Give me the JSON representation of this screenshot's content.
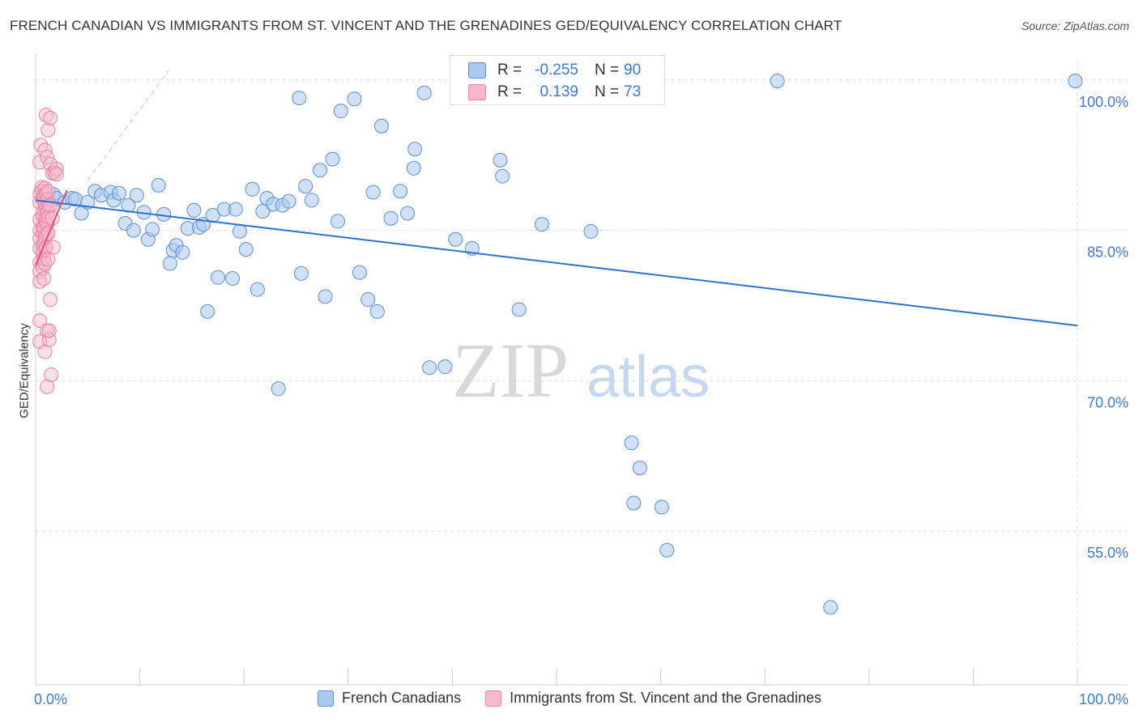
{
  "title": "FRENCH CANADIAN VS IMMIGRANTS FROM ST. VINCENT AND THE GRENADINES GED/EQUIVALENCY CORRELATION CHART",
  "source": "Source: ZipAtlas.com",
  "watermark": {
    "zip": "ZIP",
    "atlas": "atlas"
  },
  "stats_box": {
    "r_label": "R =",
    "n_label": "N =",
    "rows": [
      {
        "r": "-0.255",
        "n": "90"
      },
      {
        "r": "0.139",
        "n": "73"
      }
    ]
  },
  "colors": {
    "blue_fill": "#aac8f0",
    "blue_stroke": "#5b8fd6",
    "blue_line": "#2d6fd2",
    "pink_fill": "#f7b8cb",
    "pink_stroke": "#ee80a0",
    "pink_line": "#e0507a",
    "tick_text": "#3b78d8",
    "grid": "#e0e0e0"
  },
  "chart_data": {
    "type": "scatter",
    "xlabel": "",
    "ylabel": "GED/Equivalency",
    "xlim": [
      0,
      100
    ],
    "ylim": [
      40,
      102
    ],
    "x_tick_labels": [
      {
        "value": 0,
        "label": "0.0%"
      },
      {
        "value": 100,
        "label": "100.0%"
      }
    ],
    "y_tick_labels": [
      {
        "value": 55,
        "label": "55.0%"
      },
      {
        "value": 70,
        "label": "70.0%"
      },
      {
        "value": 85,
        "label": "85.0%"
      },
      {
        "value": 100,
        "label": "100.0%"
      }
    ],
    "grid": true,
    "legend_position": "bottom",
    "series": [
      {
        "name": "French Canadians",
        "color": "#aac8f0",
        "trend": {
          "x": [
            0,
            100
          ],
          "y": [
            88.0,
            75.5
          ]
        },
        "points": [
          [
            1.7,
            88.6
          ],
          [
            2.0,
            88.2
          ],
          [
            2.8,
            87.8
          ],
          [
            3.5,
            88.2
          ],
          [
            4.4,
            86.7
          ],
          [
            3.8,
            88.1
          ],
          [
            5.0,
            87.8
          ],
          [
            5.7,
            88.9
          ],
          [
            6.3,
            88.5
          ],
          [
            7.2,
            88.8
          ],
          [
            7.5,
            88.0
          ],
          [
            8.0,
            88.7
          ],
          [
            8.6,
            85.7
          ],
          [
            8.9,
            87.5
          ],
          [
            9.4,
            85.0
          ],
          [
            9.7,
            88.5
          ],
          [
            10.4,
            86.8
          ],
          [
            10.8,
            84.1
          ],
          [
            11.2,
            85.1
          ],
          [
            11.8,
            89.5
          ],
          [
            12.3,
            86.6
          ],
          [
            12.9,
            81.7
          ],
          [
            13.2,
            83.0
          ],
          [
            13.5,
            83.5
          ],
          [
            14.1,
            82.8
          ],
          [
            14.6,
            85.2
          ],
          [
            15.2,
            87.0
          ],
          [
            15.7,
            85.3
          ],
          [
            16.1,
            85.6
          ],
          [
            16.5,
            76.9
          ],
          [
            17.0,
            86.5
          ],
          [
            17.5,
            80.3
          ],
          [
            18.1,
            87.1
          ],
          [
            18.9,
            80.2
          ],
          [
            19.2,
            87.1
          ],
          [
            19.6,
            84.9
          ],
          [
            20.2,
            83.1
          ],
          [
            20.8,
            89.1
          ],
          [
            21.3,
            79.1
          ],
          [
            21.8,
            86.9
          ],
          [
            22.2,
            88.2
          ],
          [
            22.8,
            87.6
          ],
          [
            23.3,
            69.2
          ],
          [
            23.7,
            87.5
          ],
          [
            24.3,
            87.9
          ],
          [
            25.3,
            98.2
          ],
          [
            25.5,
            80.7
          ],
          [
            25.9,
            89.4
          ],
          [
            26.5,
            88.0
          ],
          [
            27.3,
            91.0
          ],
          [
            27.8,
            78.4
          ],
          [
            28.5,
            92.1
          ],
          [
            29.0,
            85.9
          ],
          [
            29.3,
            96.9
          ],
          [
            30.6,
            98.1
          ],
          [
            31.1,
            80.8
          ],
          [
            31.9,
            78.1
          ],
          [
            32.4,
            88.8
          ],
          [
            32.8,
            76.9
          ],
          [
            33.2,
            95.4
          ],
          [
            34.1,
            86.2
          ],
          [
            35.0,
            88.9
          ],
          [
            35.7,
            86.7
          ],
          [
            36.3,
            91.2
          ],
          [
            36.4,
            93.1
          ],
          [
            37.3,
            98.7
          ],
          [
            37.8,
            71.3
          ],
          [
            39.3,
            71.4
          ],
          [
            40.3,
            84.1
          ],
          [
            41.9,
            83.2
          ],
          [
            44.6,
            92.0
          ],
          [
            44.8,
            90.4
          ],
          [
            46.4,
            77.1
          ],
          [
            47.3,
            99.9
          ],
          [
            48.6,
            85.6
          ],
          [
            48.9,
            100.0
          ],
          [
            53.3,
            84.9
          ],
          [
            57.2,
            63.8
          ],
          [
            57.4,
            57.8
          ],
          [
            58.0,
            61.3
          ],
          [
            60.1,
            57.4
          ],
          [
            60.6,
            53.1
          ],
          [
            71.2,
            99.9
          ],
          [
            76.3,
            47.4
          ],
          [
            99.8,
            99.9
          ]
        ]
      },
      {
        "name": "Immigrants from St. Vincent and the Grenadines",
        "color": "#f7b8cb",
        "trend": {
          "x": [
            0,
            3.0
          ],
          "y": [
            81.5,
            89.0
          ]
        },
        "points": [
          [
            0.4,
            91.8
          ],
          [
            0.4,
            88.6
          ],
          [
            0.4,
            87.8
          ],
          [
            0.4,
            86.1
          ],
          [
            0.4,
            85.0
          ],
          [
            0.4,
            84.2
          ],
          [
            0.4,
            83.2
          ],
          [
            0.4,
            81.8
          ],
          [
            0.4,
            80.9
          ],
          [
            0.4,
            79.9
          ],
          [
            0.4,
            76.0
          ],
          [
            0.4,
            73.9
          ],
          [
            0.5,
            93.5
          ],
          [
            0.6,
            89.3
          ],
          [
            0.6,
            88.9
          ],
          [
            0.7,
            88.1
          ],
          [
            0.7,
            86.5
          ],
          [
            0.7,
            85.4
          ],
          [
            0.7,
            84.8
          ],
          [
            0.7,
            83.5
          ],
          [
            0.7,
            82.8
          ],
          [
            0.7,
            81.3
          ],
          [
            0.8,
            88.4
          ],
          [
            0.8,
            87.0
          ],
          [
            0.8,
            85.2
          ],
          [
            0.8,
            84.0
          ],
          [
            0.8,
            82.2
          ],
          [
            0.8,
            80.2
          ],
          [
            0.9,
            93.0
          ],
          [
            0.9,
            89.2
          ],
          [
            0.9,
            87.6
          ],
          [
            0.9,
            86.1
          ],
          [
            0.9,
            84.3
          ],
          [
            0.9,
            83.1
          ],
          [
            0.9,
            81.7
          ],
          [
            0.9,
            72.9
          ],
          [
            1.0,
            96.5
          ],
          [
            1.0,
            88.7
          ],
          [
            1.0,
            87.3
          ],
          [
            1.0,
            85.9
          ],
          [
            1.0,
            84.6
          ],
          [
            1.0,
            83.3
          ],
          [
            1.1,
            92.3
          ],
          [
            1.1,
            88.1
          ],
          [
            1.1,
            86.8
          ],
          [
            1.1,
            85.6
          ],
          [
            1.1,
            75.0
          ],
          [
            1.1,
            69.4
          ],
          [
            1.2,
            95.0
          ],
          [
            1.2,
            88.9
          ],
          [
            1.2,
            87.4
          ],
          [
            1.2,
            86.3
          ],
          [
            1.2,
            84.7
          ],
          [
            1.2,
            82.1
          ],
          [
            1.3,
            74.1
          ],
          [
            1.3,
            75.0
          ],
          [
            1.4,
            96.2
          ],
          [
            1.4,
            91.6
          ],
          [
            1.4,
            87.5
          ],
          [
            1.4,
            78.1
          ],
          [
            1.5,
            70.6
          ],
          [
            1.6,
            90.7
          ],
          [
            1.6,
            86.2
          ],
          [
            1.7,
            83.3
          ],
          [
            1.8,
            90.8
          ],
          [
            2.0,
            91.1
          ],
          [
            2.0,
            90.6
          ]
        ]
      }
    ]
  }
}
